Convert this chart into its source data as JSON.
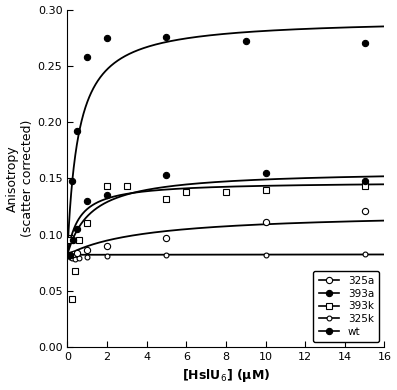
{
  "xlabel": "[HslU$_6$] (μM)",
  "ylabel": "Anisotropy\n(scatter corrected)",
  "xlim": [
    0,
    16
  ],
  "ylim": [
    0,
    0.3
  ],
  "xticks": [
    0,
    2,
    4,
    6,
    8,
    10,
    12,
    14,
    16
  ],
  "yticks": [
    0,
    0.05,
    0.1,
    0.15,
    0.2,
    0.25,
    0.3
  ],
  "background_color": "#ffffff",
  "figsize": [
    3.97,
    3.9
  ],
  "dpi": 100,
  "series_order": [
    "325k",
    "325a",
    "393k",
    "393a",
    "wt"
  ],
  "series": {
    "wt": {
      "label": "wt",
      "marker": "o",
      "fillstyle": "full",
      "color": "#000000",
      "ms": 4.5,
      "lw": 1.3,
      "A0": 0.082,
      "Bmax": 0.21,
      "Kd": 0.55,
      "sx": [
        0.15,
        0.25,
        0.5,
        1.0,
        2.0,
        5.0,
        9.0,
        15.0
      ],
      "sy": [
        0.082,
        0.148,
        0.192,
        0.258,
        0.275,
        0.276,
        0.272,
        0.27
      ]
    },
    "393a": {
      "label": "393a",
      "marker": "o",
      "fillstyle": "full",
      "color": "#000000",
      "ms": 4.5,
      "lw": 1.3,
      "A0": 0.082,
      "Bmax": 0.075,
      "Kd": 1.2,
      "sx": [
        0.15,
        0.3,
        0.5,
        1.0,
        2.0,
        5.0,
        10.0,
        15.0
      ],
      "sy": [
        0.082,
        0.095,
        0.105,
        0.13,
        0.135,
        0.153,
        0.155,
        0.148
      ]
    },
    "393k": {
      "label": "393k",
      "marker": "s",
      "fillstyle": "none",
      "color": "#000000",
      "ms": 5,
      "lw": 1.3,
      "A0": 0.082,
      "Bmax": 0.065,
      "Kd": 0.6,
      "sx": [
        0.15,
        0.25,
        0.4,
        0.6,
        1.0,
        2.0,
        3.0,
        5.0,
        6.0,
        8.0,
        10.0,
        15.0
      ],
      "sy": [
        0.095,
        0.043,
        0.068,
        0.095,
        0.11,
        0.143,
        0.143,
        0.132,
        0.138,
        0.138,
        0.14,
        0.143
      ]
    },
    "325a": {
      "label": "325a",
      "marker": "o",
      "fillstyle": "none",
      "color": "#000000",
      "ms": 4.5,
      "lw": 1.3,
      "A0": 0.082,
      "Bmax": 0.038,
      "Kd": 4.0,
      "sx": [
        0.15,
        0.3,
        0.5,
        1.0,
        2.0,
        5.0,
        10.0,
        15.0
      ],
      "sy": [
        0.082,
        0.083,
        0.084,
        0.086,
        0.09,
        0.097,
        0.111,
        0.121
      ]
    },
    "325k": {
      "label": "325k",
      "marker": "o",
      "fillstyle": "none",
      "color": "#000000",
      "ms": 3.5,
      "lw": 1.3,
      "A0": 0.082,
      "Bmax": 0.002,
      "Kd": 100.0,
      "sx": [
        0.15,
        0.25,
        0.4,
        0.6,
        1.0,
        2.0,
        5.0,
        10.0,
        15.0
      ],
      "sy": [
        0.08,
        0.079,
        0.078,
        0.079,
        0.08,
        0.081,
        0.082,
        0.082,
        0.083
      ]
    }
  }
}
